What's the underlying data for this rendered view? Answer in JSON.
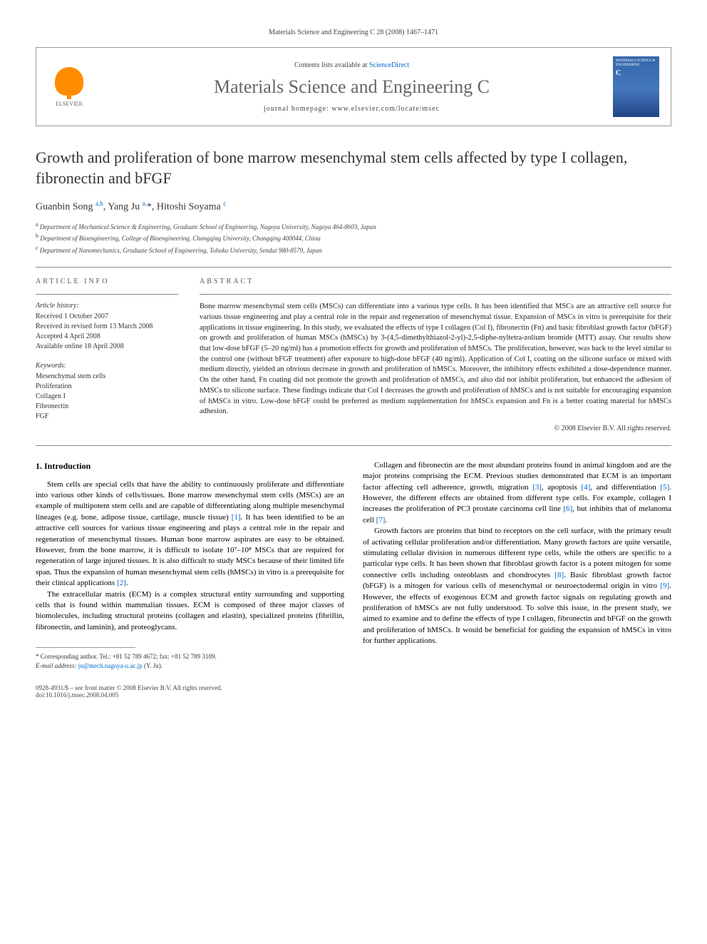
{
  "running_header": "Materials Science and Engineering C 28 (2008) 1467–1471",
  "contents_line_prefix": "Contents lists available at ",
  "contents_line_link": "ScienceDirect",
  "journal_name": "Materials Science and Engineering C",
  "journal_homepage_prefix": "journal homepage: ",
  "journal_homepage": "www.elsevier.com/locate/msec",
  "elsevier_text": "ELSEVIER",
  "cover_title": "MATERIALS SCIENCE & ENGINEERING",
  "cover_letter": "C",
  "article_title": "Growth and proliferation of bone marrow mesenchymal stem cells affected by type I collagen, fibronectin and bFGF",
  "authors_html": "Guanbin Song <sup>a,b</sup>, Yang Ju <sup>a,</sup>*, Hitoshi Soyama <sup>c</sup>",
  "affiliations": [
    {
      "sup": "a",
      "text": "Department of Mechanical Science & Engineering, Graduate School of Engineering, Nagoya University, Nagoya 464-8603, Japan"
    },
    {
      "sup": "b",
      "text": "Department of Bioengineering, College of Bioengineering, Chongqing University, Chongqing 400044, China"
    },
    {
      "sup": "c",
      "text": "Department of Nanomechanics, Graduate School of Engineering, Tohoku University, Sendai 980-8579, Japan"
    }
  ],
  "info_heading": "ARTICLE INFO",
  "abstract_heading": "ABSTRACT",
  "article_history_label": "Article history:",
  "article_history": [
    "Received 1 October 2007",
    "Received in revised form 13 March 2008",
    "Accepted 4 April 2008",
    "Available online 18 April 2008"
  ],
  "keywords_label": "Keywords:",
  "keywords": [
    "Mesenchymal stem cells",
    "Proliferation",
    "Collagen I",
    "Fibronectin",
    "FGF"
  ],
  "abstract": "Bone marrow mesenchymal stem cells (MSCs) can differentiate into a various type cells. It has been identified that MSCs are an attractive cell source for various tissue engineering and play a central role in the repair and regeneration of mesenchymal tissue. Expansion of MSCs in vitro is prerequisite for their applications in tissue engineering. In this study, we evaluated the effects of type I collagen (Col I), fibronectin (Fn) and basic fibroblast growth factor (bFGF) on growth and proliferation of human MSCs (hMSCs) by 3-(4,5-dimethylthiazol-2-yl)-2,5-diphe-nyltetra-zolium bromide (MTT) assay. Our results show that low-dose bFGF (5–20 ng/ml) has a promotion effects for growth and proliferation of hMSCs. The proliferation, however, was back to the level similar to the control one (without bFGF treatment) after exposure to high-dose bFGF (40 ng/ml). Application of Col I, coating on the silicone surface or mixed with medium directly, yielded an obvious decrease in growth and proliferation of hMSCs. Moreover, the inhibitory effects exhibited a dose-dependence manner. On the other hand, Fn coating did not promote the growth and proliferation of hMSCs, and also did not inhibit proliferation, but enhanced the adhesion of hMSCs to silicone surface. These findings indicate that Col I decreases the growth and proliferation of hMSCs and is not suitable for encouraging expansion of hMSCs in vitro. Low-dose bFGF could be preferred as medium supplementation for hMSCs expansion and Fn is a better coating material for hMSCs adhesion.",
  "copyright": "© 2008 Elsevier B.V. All rights reserved.",
  "section_1_heading": "1. Introduction",
  "para1": "Stem cells are special cells that have the ability to continuously proliferate and differentiate into various other kinds of cells/tissues. Bone marrow mesenchymal stem cells (MSCs) are an example of multipotent stem cells and are capable of differentiating along multiple mesenchymal lineages (e.g. bone, adipose tissue, cartilage, muscle tissue) [1]. It has been identified to be an attractive cell sources for various tissue engineering and plays a central role in the repair and regeneration of mesenchymal tissues. Human bone marrow aspirates are easy to be obtained. However, from the bone marrow, it is difficult to isolate 10⁷–10⁸ MSCs that are required for regeneration of large injured tissues. It is also difficult to study MSCs because of their limited life span. Thus the expansion of human mesenchymal stem cells (hMSCs) in vitro is a prerequisite for their clinical applications [2].",
  "para2": "The extracellular matrix (ECM) is a complex structural entity surrounding and supporting cells that is found within mammalian tissues. ECM is composed of three major classes of biomolecules, including structural proteins (collagen and elastin), specialized proteins (fibrillin, fibronectin, and laminin), and proteoglycans.",
  "para3": "Collagen and fibronectin are the most abundant proteins found in animal kingdom and are the major proteins comprising the ECM. Previous studies demonstrated that ECM is an important factor affecting cell adherence, growth, migration [3], apoptosis [4], and differentiation [5]. However, the different effects are obtained from different type cells. For example, collagen I increases the proliferation of PC3 prostate carcinoma cell line [6], but inhibits that of melanoma cell [7].",
  "para4": "Growth factors are proteins that bind to receptors on the cell surface, with the primary result of activating cellular proliferation and/or differentiation. Many growth factors are quite versatile, stimulating cellular division in numerous different type cells, while the others are specific to a particular type cells. It has been shown that fibroblast growth factor is a potent mitogen for some connective cells including osteoblasts and chondrocytes [8]. Basic fibroblast growth factor (bFGF) is a mitogen for various cells of mesenchymal or neuroectodermal origin in vitro [9]. However, the effects of exogenous ECM and growth factor signals on regulating growth and proliferation of hMSCs are not fully understood. To solve this issue, in the present study, we aimed to examine and to define the effects of type I collagen, fibronectin and bFGF on the growth and proliferation of hMSCs. It would be beneficial for guiding the expansion of hMSCs in vitro for further applications.",
  "footnote_marker": "*",
  "footnote_corr": "Corresponding author. Tel.: +81 52 789 4672; fax: +81 52 789 3109.",
  "footnote_email_label": "E-mail address: ",
  "footnote_email": "ju@mech.nagoya-u.ac.jp",
  "footnote_email_suffix": " (Y. Ju).",
  "bottom_meta_line1": "0928-4931/$ – see front matter © 2008 Elsevier B.V. All rights reserved.",
  "bottom_meta_line2": "doi:10.1016/j.msec.2008.04.005",
  "refs": {
    "r1": "[1]",
    "r2": "[2]",
    "r3": "[3]",
    "r4": "[4]",
    "r5": "[5]",
    "r6": "[6]",
    "r7": "[7]",
    "r8": "[8]",
    "r9": "[9]"
  }
}
